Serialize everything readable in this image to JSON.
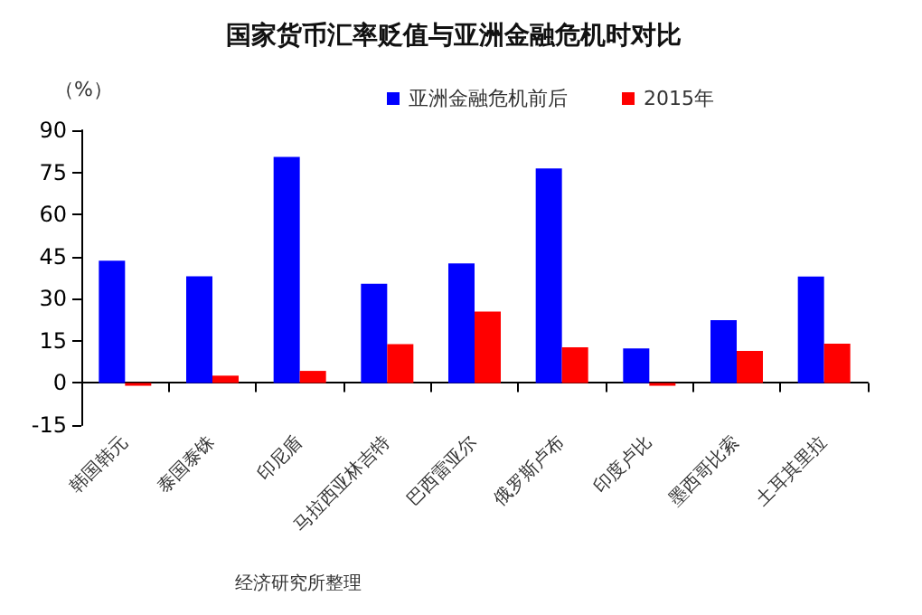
{
  "chart_data": {
    "type": "bar",
    "title": "国家货币汇率贬值与亚洲金融危机时对比",
    "ylabel": "（%）",
    "categories": [
      "韩国韩元",
      "泰国泰铢",
      "印尼盾",
      "马拉西亚林吉特",
      "巴西雷亚尔",
      "俄罗斯卢布",
      "印度卢比",
      "墨西哥比索",
      "土耳其里拉"
    ],
    "series": [
      {
        "name": "亚洲金融危机前后",
        "color": "#0000ff",
        "values": [
          43.5,
          38,
          80.5,
          35.3,
          42.6,
          76.4,
          12.3,
          22.4,
          37.9
        ]
      },
      {
        "name": "2015年",
        "color": "#ff0000",
        "values": [
          -1,
          2.6,
          4.3,
          13.8,
          25.4,
          12.7,
          -1,
          11.4,
          14
        ]
      }
    ],
    "ylim": [
      -15,
      90
    ],
    "yticks": [
      -15,
      0,
      15,
      30,
      45,
      60,
      75,
      90
    ],
    "legend": "top right",
    "annotations": [
      "经济研究所整理"
    ]
  }
}
